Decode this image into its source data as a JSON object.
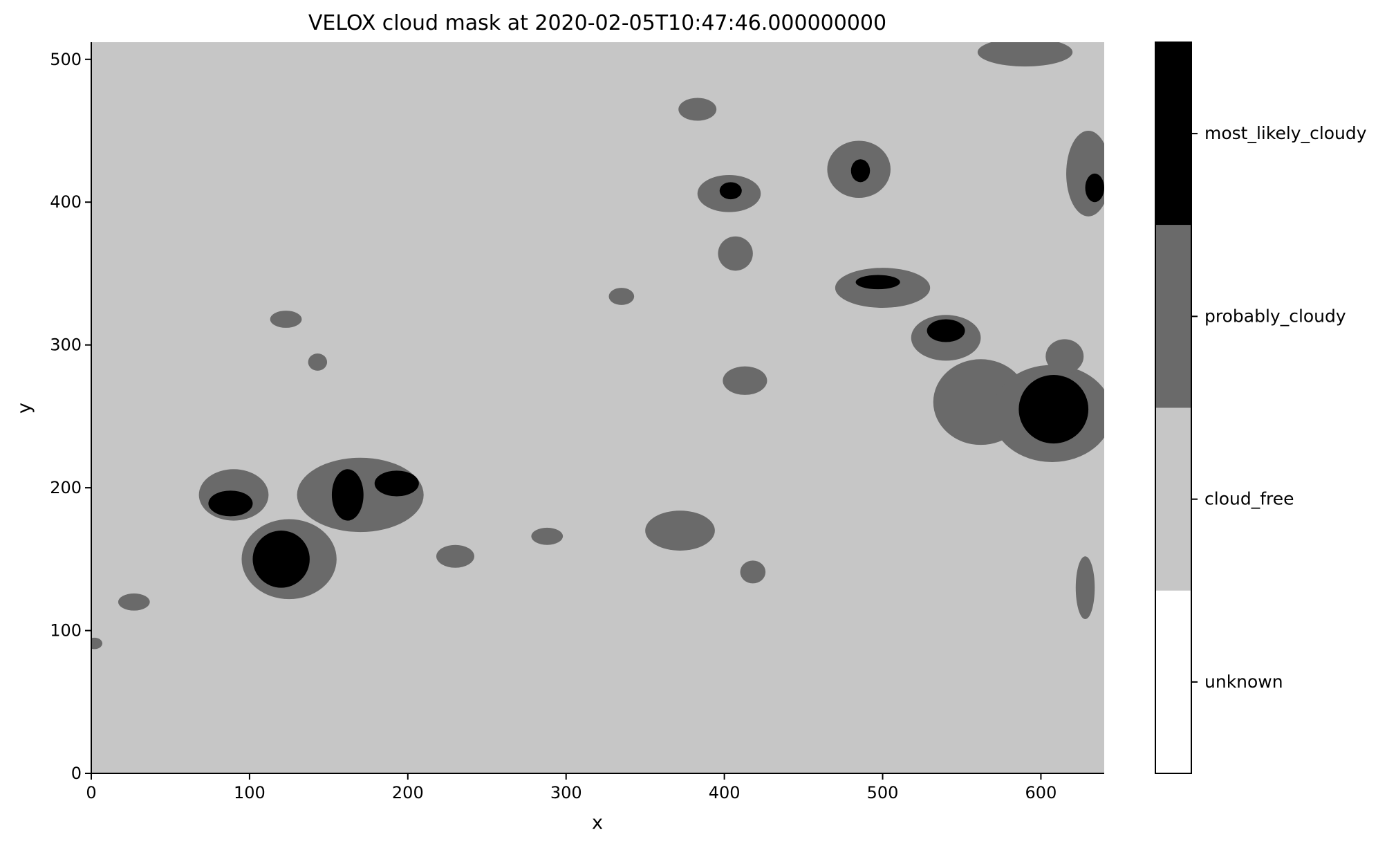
{
  "chart_data": {
    "type": "heatmap",
    "title": "VELOX cloud mask at 2020-02-05T10:47:46.000000000",
    "xlabel": "x",
    "ylabel": "y",
    "xlim": [
      0,
      640
    ],
    "ylim": [
      0,
      512
    ],
    "xticks": [
      0,
      100,
      200,
      300,
      400,
      500,
      600
    ],
    "yticks": [
      0,
      100,
      200,
      300,
      400,
      500
    ],
    "background_category": "cloud_free",
    "colorbar": {
      "categories": [
        {
          "label": "unknown",
          "value": 0,
          "color": "#ffffff"
        },
        {
          "label": "cloud_free",
          "value": 1,
          "color": "#c6c6c6"
        },
        {
          "label": "probably_cloudy",
          "value": 2,
          "color": "#6a6a6a"
        },
        {
          "label": "most_likely_cloudy",
          "value": 3,
          "color": "#000000"
        }
      ]
    },
    "cloud_regions": [
      {
        "category": "probably_cloudy",
        "x": 2,
        "y": 91,
        "rx": 5,
        "ry": 4
      },
      {
        "category": "probably_cloudy",
        "x": 27,
        "y": 120,
        "rx": 10,
        "ry": 6
      },
      {
        "category": "probably_cloudy",
        "x": 90,
        "y": 195,
        "rx": 22,
        "ry": 18
      },
      {
        "category": "most_likely_cloudy",
        "x": 88,
        "y": 189,
        "rx": 14,
        "ry": 9
      },
      {
        "category": "probably_cloudy",
        "x": 125,
        "y": 150,
        "rx": 30,
        "ry": 28
      },
      {
        "category": "most_likely_cloudy",
        "x": 120,
        "y": 150,
        "rx": 18,
        "ry": 20
      },
      {
        "category": "probably_cloudy",
        "x": 170,
        "y": 195,
        "rx": 40,
        "ry": 26
      },
      {
        "category": "most_likely_cloudy",
        "x": 162,
        "y": 195,
        "rx": 10,
        "ry": 18
      },
      {
        "category": "most_likely_cloudy",
        "x": 193,
        "y": 203,
        "rx": 14,
        "ry": 9
      },
      {
        "category": "probably_cloudy",
        "x": 230,
        "y": 152,
        "rx": 12,
        "ry": 8
      },
      {
        "category": "probably_cloudy",
        "x": 123,
        "y": 318,
        "rx": 10,
        "ry": 6
      },
      {
        "category": "probably_cloudy",
        "x": 143,
        "y": 288,
        "rx": 6,
        "ry": 6
      },
      {
        "category": "probably_cloudy",
        "x": 288,
        "y": 166,
        "rx": 10,
        "ry": 6
      },
      {
        "category": "probably_cloudy",
        "x": 372,
        "y": 170,
        "rx": 22,
        "ry": 14
      },
      {
        "category": "probably_cloudy",
        "x": 418,
        "y": 141,
        "rx": 8,
        "ry": 8
      },
      {
        "category": "probably_cloudy",
        "x": 413,
        "y": 275,
        "rx": 14,
        "ry": 10
      },
      {
        "category": "probably_cloudy",
        "x": 407,
        "y": 364,
        "rx": 11,
        "ry": 12
      },
      {
        "category": "probably_cloudy",
        "x": 403,
        "y": 406,
        "rx": 20,
        "ry": 13
      },
      {
        "category": "most_likely_cloudy",
        "x": 404,
        "y": 408,
        "rx": 7,
        "ry": 6
      },
      {
        "category": "probably_cloudy",
        "x": 383,
        "y": 465,
        "rx": 12,
        "ry": 8
      },
      {
        "category": "probably_cloudy",
        "x": 335,
        "y": 334,
        "rx": 8,
        "ry": 6
      },
      {
        "category": "probably_cloudy",
        "x": 485,
        "y": 423,
        "rx": 20,
        "ry": 20
      },
      {
        "category": "most_likely_cloudy",
        "x": 486,
        "y": 422,
        "rx": 6,
        "ry": 8
      },
      {
        "category": "probably_cloudy",
        "x": 500,
        "y": 340,
        "rx": 30,
        "ry": 14
      },
      {
        "category": "most_likely_cloudy",
        "x": 497,
        "y": 344,
        "rx": 14,
        "ry": 5
      },
      {
        "category": "probably_cloudy",
        "x": 540,
        "y": 305,
        "rx": 22,
        "ry": 16
      },
      {
        "category": "most_likely_cloudy",
        "x": 540,
        "y": 310,
        "rx": 12,
        "ry": 8
      },
      {
        "category": "probably_cloudy",
        "x": 562,
        "y": 260,
        "rx": 30,
        "ry": 30
      },
      {
        "category": "probably_cloudy",
        "x": 607,
        "y": 252,
        "rx": 38,
        "ry": 34
      },
      {
        "category": "most_likely_cloudy",
        "x": 608,
        "y": 255,
        "rx": 22,
        "ry": 24
      },
      {
        "category": "probably_cloudy",
        "x": 630,
        "y": 420,
        "rx": 14,
        "ry": 30
      },
      {
        "category": "most_likely_cloudy",
        "x": 634,
        "y": 410,
        "rx": 6,
        "ry": 10
      },
      {
        "category": "probably_cloudy",
        "x": 628,
        "y": 130,
        "rx": 6,
        "ry": 22
      },
      {
        "category": "probably_cloudy",
        "x": 590,
        "y": 505,
        "rx": 30,
        "ry": 10
      },
      {
        "category": "probably_cloudy",
        "x": 615,
        "y": 292,
        "rx": 12,
        "ry": 12
      }
    ]
  }
}
